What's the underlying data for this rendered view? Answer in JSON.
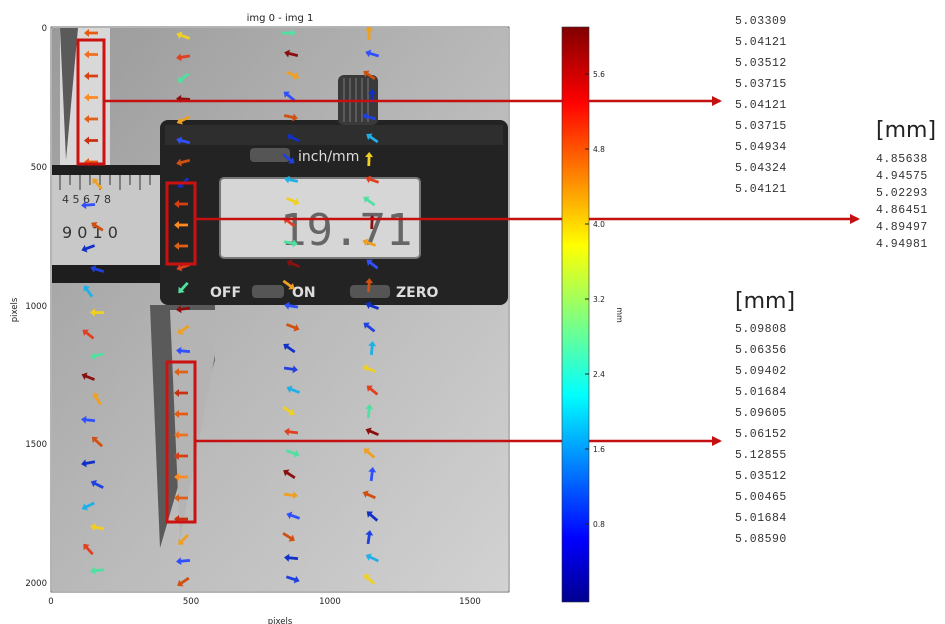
{
  "plot": {
    "title": "img 0 - img 1",
    "xlabel": "pixels",
    "ylabel": "pixels",
    "x_ticks": [
      "0",
      "500",
      "1000",
      "1500"
    ],
    "y_ticks": [
      "0",
      "500",
      "1000",
      "1500",
      "2000"
    ]
  },
  "colorbar": {
    "label": "mm",
    "ticks": [
      "5.6",
      "4.8",
      "4.0",
      "3.2",
      "2.4",
      "1.6",
      "0.8"
    ]
  },
  "caliper_text": {
    "unit_button": "inch/mm",
    "off": "OFF",
    "on": "ON",
    "zero": "ZERO",
    "display": "19.71",
    "scale_a": "4 5 6 7 8",
    "scale_b": "9 0   1 0"
  },
  "columns": [
    {
      "header": "",
      "values": [
        "5.03309",
        "5.04121",
        "5.03512",
        "5.03715",
        "5.04121",
        "5.03715",
        "5.04934",
        "5.04324",
        "5.04121"
      ]
    },
    {
      "header": "[mm]",
      "values": [
        "4.85638",
        "4.94575",
        "5.02293",
        "4.86451",
        "4.89497",
        "4.94981"
      ]
    },
    {
      "header": "[mm]",
      "values": [
        "5.09808",
        "5.06356",
        "5.09402",
        "5.01684",
        "5.09605",
        "5.06152",
        "5.12855",
        "5.03512",
        "5.00465",
        "5.01684",
        "5.08590"
      ]
    }
  ],
  "colors": {
    "highlight": "#cc1111",
    "arrow_line": "#c41010"
  }
}
